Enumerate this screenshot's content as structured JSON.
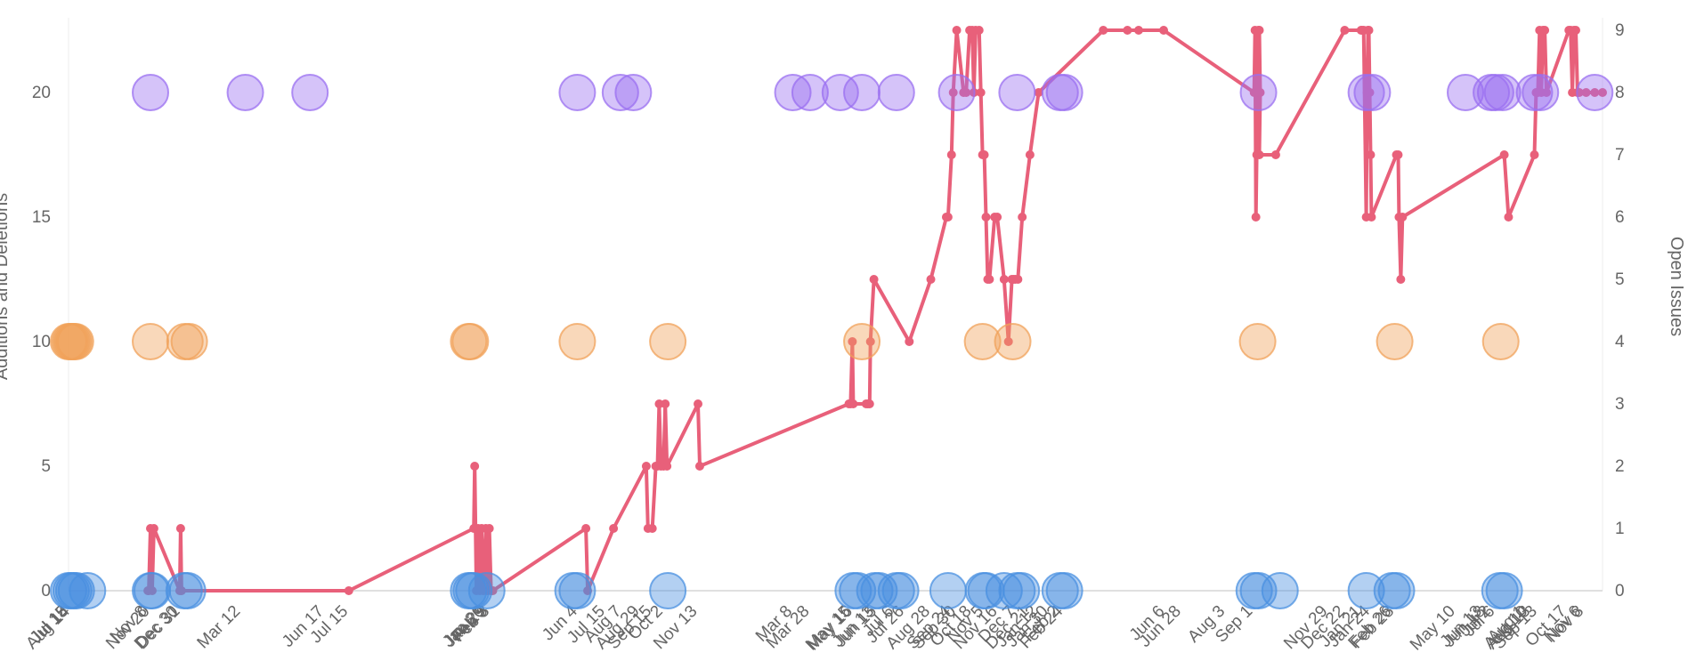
{
  "chart_data": {
    "type": "scatter",
    "left_axis": {
      "label": "Additions and Deletions",
      "ticks": [
        0,
        5,
        10,
        15,
        20
      ],
      "range": [
        0,
        23
      ]
    },
    "right_axis": {
      "label": "Open Issues",
      "ticks": [
        0,
        1,
        2,
        3,
        4,
        5,
        6,
        7,
        8,
        9
      ],
      "range": [
        0,
        9.2
      ]
    },
    "x_tick_labels": [
      {
        "x": 0,
        "label": "Jul 15"
      },
      {
        "x": 0.6,
        "label": "Jul 18"
      },
      {
        "x": 2.4,
        "label": "Aug 14"
      },
      {
        "x": 92,
        "label": "Nov 8"
      },
      {
        "x": 95,
        "label": "Nov 20"
      },
      {
        "x": 128,
        "label": "Dec 30"
      },
      {
        "x": 130,
        "label": "Dec 31"
      },
      {
        "x": 200,
        "label": "Mar 12"
      },
      {
        "x": 297,
        "label": "Jun 17"
      },
      {
        "x": 325,
        "label": "Jul 15"
      },
      {
        "x": 483,
        "label": "Jan 20"
      },
      {
        "x": 485,
        "label": "Jan 29"
      },
      {
        "x": 487,
        "label": "Feb 5"
      },
      {
        "x": 489,
        "label": "Feb 8"
      },
      {
        "x": 591,
        "label": "Jun 4"
      },
      {
        "x": 623,
        "label": "Jul 15"
      },
      {
        "x": 642,
        "label": "Aug 7"
      },
      {
        "x": 663,
        "label": "Aug 29"
      },
      {
        "x": 677,
        "label": "Sep 15"
      },
      {
        "x": 690,
        "label": "Oct 2"
      },
      {
        "x": 730,
        "label": "Nov 13"
      },
      {
        "x": 840,
        "label": "Mar 8"
      },
      {
        "x": 860,
        "label": "Mar 28"
      },
      {
        "x": 908,
        "label": "May 15"
      },
      {
        "x": 910,
        "label": "May 16"
      },
      {
        "x": 935,
        "label": "Jun 13"
      },
      {
        "x": 938,
        "label": "Jun 15"
      },
      {
        "x": 958,
        "label": "Jul 6"
      },
      {
        "x": 970,
        "label": "Jul 26"
      },
      {
        "x": 1000,
        "label": "Aug 28"
      },
      {
        "x": 1024,
        "label": "Sep 24"
      },
      {
        "x": 1030,
        "label": "Sep 30"
      },
      {
        "x": 1048,
        "label": "Oct 18"
      },
      {
        "x": 1062,
        "label": "Nov 5"
      },
      {
        "x": 1078,
        "label": "Nov 16"
      },
      {
        "x": 1099,
        "label": "Dec 7"
      },
      {
        "x": 1115,
        "label": "Dec 21"
      },
      {
        "x": 1125,
        "label": "Jan 12"
      },
      {
        "x": 1137,
        "label": "Jan 30"
      },
      {
        "x": 1150,
        "label": "Feb 2"
      },
      {
        "x": 1154,
        "label": "Feb 24"
      },
      {
        "x": 1272,
        "label": "Jun 6"
      },
      {
        "x": 1291,
        "label": "Jun 28"
      },
      {
        "x": 1342,
        "label": "Aug 3"
      },
      {
        "x": 1374,
        "label": "Sep 1"
      },
      {
        "x": 1461,
        "label": "Nov 29"
      },
      {
        "x": 1481,
        "label": "Dec 22"
      },
      {
        "x": 1500,
        "label": "Jan 21"
      },
      {
        "x": 1510,
        "label": "Jan 24"
      },
      {
        "x": 1535,
        "label": "Feb 26"
      },
      {
        "x": 1538,
        "label": "Feb 28"
      },
      {
        "x": 1609,
        "label": "May 10"
      },
      {
        "x": 1640,
        "label": "Jun 13"
      },
      {
        "x": 1644,
        "label": "Jun 18"
      },
      {
        "x": 1650,
        "label": "Jul 2"
      },
      {
        "x": 1655,
        "label": "Jul 6"
      },
      {
        "x": 1690,
        "label": "Aug 1"
      },
      {
        "x": 1693,
        "label": "Aug 10"
      },
      {
        "x": 1696,
        "label": "Aug 13"
      },
      {
        "x": 1704,
        "label": "Sep 13"
      },
      {
        "x": 1738,
        "label": "Oct 17"
      },
      {
        "x": 1755,
        "label": "Nov 6"
      },
      {
        "x": 1758,
        "label": "Nov 8"
      }
    ],
    "series": [
      {
        "color": "#9a6ff0",
        "value": 20,
        "x": [
          95,
          205,
          280,
          590,
          640,
          655,
          840,
          860,
          895,
          920,
          960,
          1030,
          1100,
          1150,
          1155,
          1380,
          1505,
          1512,
          1620,
          1650,
          1655,
          1663,
          1700,
          1707,
          1770
        ]
      },
      {
        "color": "#f0a25a",
        "value": 10,
        "x": [
          0,
          2,
          4,
          6,
          8,
          95,
          135,
          140,
          464,
          466,
          590,
          695,
          920,
          1060,
          1095,
          1379,
          1538,
          1661
        ]
      },
      {
        "color": "#4a90e0",
        "value": 0,
        "x": [
          0,
          3,
          6,
          9,
          22,
          95,
          97,
          134,
          138,
          464,
          467,
          470,
          485,
          585,
          590,
          695,
          910,
          915,
          935,
          940,
          960,
          965,
          1020,
          1061,
          1064,
          1085,
          1100,
          1105,
          1150,
          1155,
          1375,
          1380,
          1405,
          1505,
          1535,
          1540,
          1660,
          1665
        ]
      },
      {
        "color": "#e8607a",
        "name": "Open Issues",
        "type": "line",
        "x": [
          92,
          93,
          95,
          97,
          99,
          129,
          130,
          131,
          325,
          470,
          471,
          473,
          475,
          477,
          479,
          481,
          484,
          486,
          488,
          490,
          492,
          600,
          602,
          632,
          670,
          672,
          677,
          681,
          683,
          685,
          687,
          690,
          692,
          694,
          730,
          732,
          905,
          907,
          909,
          910,
          925,
          927,
          929,
          930,
          934,
          975,
          1000,
          1018,
          1020,
          1024,
          1026,
          1030,
          1038,
          1041,
          1045,
          1048,
          1050,
          1052,
          1056,
          1058,
          1060,
          1062,
          1064,
          1066,
          1068,
          1074,
          1077,
          1085,
          1090,
          1094,
          1096,
          1098,
          1101,
          1106,
          1115,
          1125,
          1200,
          1228,
          1241,
          1270,
          1375,
          1376,
          1377,
          1378,
          1379,
          1380,
          1381,
          1382,
          1381,
          1400,
          1480,
          1499,
          1500,
          1502,
          1505,
          1506,
          1507,
          1508,
          1509,
          1510,
          1511,
          1540,
          1542,
          1543,
          1545,
          1547,
          1665,
          1670,
          1700,
          1702,
          1704,
          1706,
          1708,
          1710,
          1712,
          1714,
          1740,
          1742,
          1744,
          1746,
          1748,
          1750,
          1752,
          1760,
          1770,
          1779
        ],
        "values": [
          0,
          0,
          1,
          0,
          1,
          0,
          1,
          0,
          0,
          1,
          2,
          0,
          1,
          0,
          1,
          0,
          1,
          0,
          1,
          0,
          0,
          1,
          0,
          1,
          2,
          1,
          1,
          2,
          2,
          3,
          2,
          2,
          3,
          2,
          3,
          2,
          3,
          3,
          4,
          3,
          3,
          3,
          3,
          4,
          5,
          4,
          5,
          6,
          6,
          7,
          8,
          9,
          8,
          8,
          9,
          9,
          8,
          9,
          9,
          8,
          7,
          7,
          6,
          5,
          5,
          6,
          6,
          5,
          4,
          5,
          5,
          5,
          5,
          6,
          7,
          8,
          9,
          9,
          9,
          9,
          8,
          9,
          6,
          7,
          8,
          9,
          9,
          8,
          7,
          7,
          9,
          9,
          9,
          9,
          6,
          8,
          9,
          9,
          8,
          7,
          6,
          7,
          7,
          6,
          5,
          6,
          7,
          6,
          7,
          8,
          8,
          9,
          8,
          9,
          9,
          8,
          9,
          9,
          8,
          9,
          9,
          8,
          8,
          8,
          8,
          8
        ]
      }
    ]
  }
}
